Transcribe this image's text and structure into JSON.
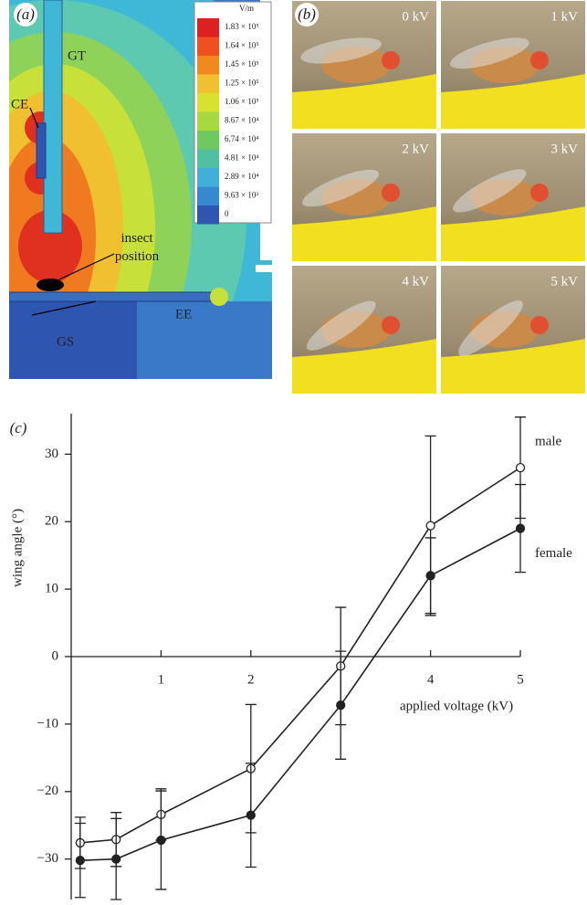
{
  "panel_a": {
    "label": "(a)",
    "gt": "GT",
    "ce": "CE",
    "insect": "insect position",
    "gs": "GS",
    "ee": "EE",
    "colorbar_unit": "V/m",
    "colorbar_labels": [
      "1.83 × 10⁵",
      "1.64 × 10⁵",
      "1.45 × 10⁵",
      "1.25 × 10⁵",
      "1.06 × 10⁵",
      "8.67 × 10⁴",
      "6.74 × 10⁴",
      "4.81 × 10⁴",
      "2.89 × 10⁴",
      "9.63 × 10³",
      "0"
    ]
  },
  "panel_b": {
    "label": "(b)",
    "photos": [
      "0 kV",
      "1 kV",
      "2 kV",
      "3 kV",
      "4 kV",
      "5 kV"
    ]
  },
  "chart_data": {
    "type": "line",
    "panel_label": "(c)",
    "x_label": "applied voltage (kV)",
    "y_label": "wing angle (°)",
    "x": [
      0.1,
      0.5,
      1,
      2,
      3,
      4,
      5
    ],
    "series": [
      {
        "name": "male",
        "color": "#222222",
        "marker": "open",
        "values": [
          -27.6,
          -27.1,
          -23.4,
          -16.6,
          -1.4,
          19.4,
          28
        ],
        "errors": [
          3.8,
          4,
          3.8,
          9.5,
          8.7,
          13.3,
          7.5
        ]
      },
      {
        "name": "female",
        "color": "#222222",
        "marker": "filled",
        "values": [
          -30.2,
          -30,
          -27.2,
          -23.5,
          -7.2,
          12,
          19
        ],
        "errors": [
          5.5,
          6,
          7.3,
          7.7,
          8,
          5.6,
          6.5
        ]
      }
    ],
    "xlim": [
      0,
      5
    ],
    "xticks": [
      1,
      2,
      4,
      5
    ],
    "ylim": [
      -36,
      36
    ],
    "yticks": [
      {
        "value": -30,
        "label": "−30"
      },
      {
        "value": -20,
        "label": "−20"
      },
      {
        "value": -10,
        "label": "−10"
      },
      0,
      10,
      20,
      30
    ]
  }
}
